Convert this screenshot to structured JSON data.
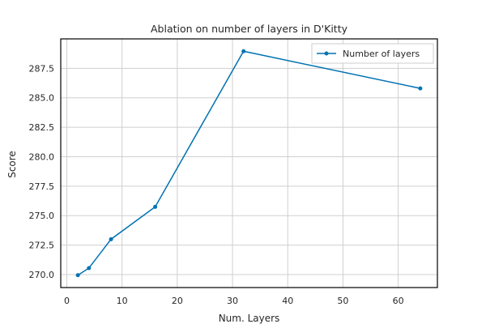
{
  "chart_data": {
    "type": "line",
    "title": "Ablation on number of layers in D'Kitty",
    "xlabel": "Num. Layers",
    "ylabel": "Score",
    "xlim": [
      -1.1,
      67.1
    ],
    "ylim": [
      268.9,
      290.0
    ],
    "xticks": [
      0,
      10,
      20,
      30,
      40,
      50,
      60
    ],
    "yticks": [
      270.0,
      272.5,
      275.0,
      277.5,
      280.0,
      282.5,
      285.0,
      287.5
    ],
    "ytick_decimals": 1,
    "grid": true,
    "legend_position": "upper right",
    "series": [
      {
        "name": "Number of layers",
        "color": "#0072b2",
        "marker": "circle",
        "x": [
          2,
          4,
          8,
          16,
          32,
          64
        ],
        "y": [
          269.95,
          270.55,
          273.0,
          275.75,
          288.95,
          285.8
        ]
      }
    ]
  }
}
